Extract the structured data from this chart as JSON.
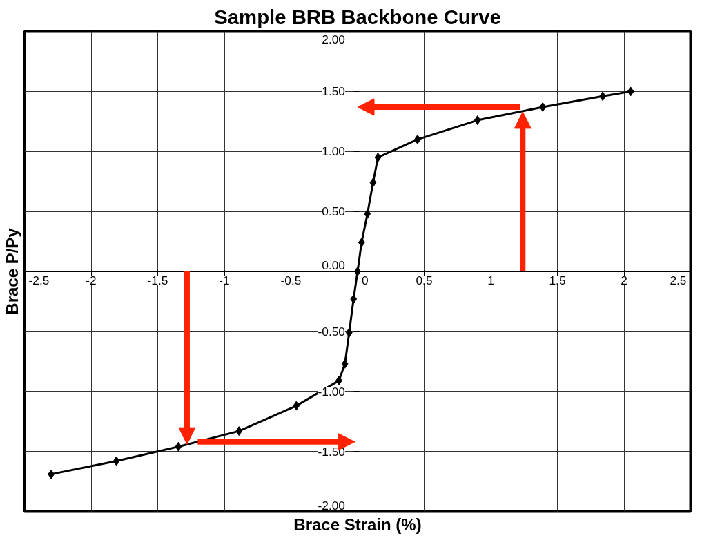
{
  "chart_data": {
    "type": "line",
    "title": "Sample BRB Backbone Curve",
    "xlabel": "Brace Strain (%)",
    "ylabel": "Brace P/Py",
    "x": [
      -2.3,
      -1.81,
      -1.345,
      -0.89,
      -0.46,
      -0.14,
      -0.095,
      -0.063,
      -0.03,
      0,
      0.03,
      0.074,
      0.116,
      0.153,
      0.45,
      0.9,
      1.39,
      1.84,
      2.05
    ],
    "series": [
      {
        "color": "#000000",
        "values": [
          -1.69,
          -1.58,
          -1.46,
          -1.33,
          -1.12,
          -0.91,
          -0.77,
          -0.51,
          -0.23,
          0,
          0.24,
          0.48,
          0.74,
          0.95,
          1.1,
          1.26,
          1.37,
          1.46,
          1.5
        ]
      }
    ],
    "xlim": [
      -2.5,
      2.5
    ],
    "xticks": [
      -2.5,
      -2,
      -1.5,
      -1,
      -0.5,
      0,
      0.5,
      1,
      1.5,
      2,
      2.5
    ],
    "ylim": [
      -2,
      2
    ],
    "yticks": [
      {
        "value": -2,
        "label": "-2.00"
      },
      {
        "value": -1.5,
        "label": "-1.50"
      },
      {
        "value": -1,
        "label": "-1.00"
      },
      {
        "value": -0.5,
        "label": "-0.50"
      },
      {
        "value": 0,
        "label": "0.00"
      },
      {
        "value": 0.5,
        "label": "0.50"
      },
      {
        "value": 1,
        "label": "1.00"
      },
      {
        "value": 1.5,
        "label": "1.50"
      },
      {
        "value": 2,
        "label": "2.00"
      }
    ],
    "grid": true,
    "marker": "diamond",
    "line_style": "solid"
  }
}
